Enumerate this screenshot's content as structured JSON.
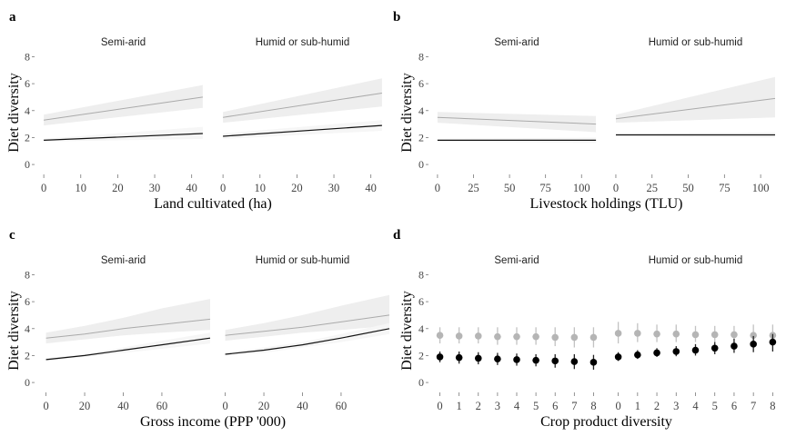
{
  "colors": {
    "upper_line": "#aaaaaa",
    "upper_band": "#eeeeee",
    "lower_line": "#111111",
    "lower_band": "#f6f6f6",
    "upper_point": "#b5b5b5",
    "upper_errorbar": "#c2c2c2",
    "lower_point": "#000000",
    "lower_errorbar": "#222222",
    "axis_text": "#444444"
  },
  "chart_data": [
    {
      "type": "line",
      "panel_letter": "a",
      "ylabel": "Diet diversity",
      "xlabel": "Land cultivated (ha)",
      "ylim": [
        0,
        8
      ],
      "yticks": [
        "0",
        "2",
        "4",
        "6",
        "8"
      ],
      "grid": false,
      "legend": "none",
      "facets": [
        {
          "strip": "Semi-arid",
          "xlim": [
            -2,
            45
          ],
          "xticks": [
            0,
            10,
            20,
            30,
            40
          ],
          "xtick_labels": [
            "0",
            "10",
            "20",
            "30",
            "40"
          ],
          "series": [
            {
              "x": [
                0,
                43
              ],
              "y": [
                3.3,
                5.0
              ],
              "lo": [
                2.9,
                4.2
              ],
              "hi": [
                3.7,
                5.9
              ]
            },
            {
              "x": [
                0,
                43
              ],
              "y": [
                1.8,
                2.3
              ],
              "lo": [
                1.7,
                1.9
              ],
              "hi": [
                1.9,
                2.8
              ]
            }
          ]
        },
        {
          "strip": "Humid or sub-humid",
          "xlim": [
            -2,
            45
          ],
          "xticks": [
            0,
            10,
            20,
            30,
            40
          ],
          "xtick_labels": [
            "0",
            "10",
            "20",
            "30",
            "40"
          ],
          "series": [
            {
              "x": [
                0,
                43
              ],
              "y": [
                3.5,
                5.3
              ],
              "lo": [
                3.1,
                4.3
              ],
              "hi": [
                3.9,
                6.4
              ]
            },
            {
              "x": [
                0,
                43
              ],
              "y": [
                2.1,
                2.9
              ],
              "lo": [
                1.9,
                2.5
              ],
              "hi": [
                2.3,
                3.3
              ]
            }
          ]
        }
      ]
    },
    {
      "type": "line",
      "panel_letter": "b",
      "ylabel": "Diet diversity",
      "xlabel": "Livestock holdings (TLU)",
      "ylim": [
        0,
        8
      ],
      "yticks": [
        "0",
        "2",
        "4",
        "6",
        "8"
      ],
      "grid": false,
      "legend": "none",
      "facets": [
        {
          "strip": "Semi-arid",
          "xlim": [
            -5,
            115
          ],
          "xticks": [
            0,
            25,
            50,
            75,
            100
          ],
          "xtick_labels": [
            "0",
            "25",
            "50",
            "75",
            "100"
          ],
          "series": [
            {
              "x": [
                0,
                110
              ],
              "y": [
                3.5,
                3.0
              ],
              "lo": [
                3.1,
                2.4
              ],
              "hi": [
                3.9,
                3.6
              ]
            },
            {
              "x": [
                0,
                110
              ],
              "y": [
                1.8,
                1.8
              ],
              "lo": [
                1.7,
                1.6
              ],
              "hi": [
                1.9,
                2.0
              ]
            }
          ]
        },
        {
          "strip": "Humid or sub-humid",
          "xlim": [
            -5,
            115
          ],
          "xticks": [
            0,
            25,
            50,
            75,
            100
          ],
          "xtick_labels": [
            "0",
            "25",
            "50",
            "75",
            "100"
          ],
          "series": [
            {
              "x": [
                0,
                110
              ],
              "y": [
                3.4,
                4.9
              ],
              "lo": [
                3.1,
                3.5
              ],
              "hi": [
                3.7,
                6.5
              ]
            },
            {
              "x": [
                0,
                110
              ],
              "y": [
                2.2,
                2.2
              ],
              "lo": [
                2.1,
                2.0
              ],
              "hi": [
                2.3,
                2.4
              ]
            }
          ]
        }
      ]
    },
    {
      "type": "line",
      "panel_letter": "c",
      "ylabel": "Diet diversity",
      "xlabel": "Gross income (PPP '000)",
      "ylim": [
        0,
        8
      ],
      "yticks": [
        "0",
        "2",
        "4",
        "6",
        "8"
      ],
      "grid": false,
      "legend": "none",
      "facets": [
        {
          "strip": "Semi-arid",
          "xlim": [
            -5,
            85
          ],
          "xticks": [
            0,
            20,
            40,
            60
          ],
          "xtick_labels": [
            "0",
            "20",
            "40",
            "60"
          ],
          "series": [
            {
              "x": [
                0,
                20,
                40,
                60,
                85
              ],
              "y": [
                3.3,
                3.6,
                4.0,
                4.3,
                4.7
              ],
              "lo": [
                2.9,
                3.2,
                3.5,
                3.7,
                3.9
              ],
              "hi": [
                3.7,
                4.2,
                4.8,
                5.5,
                6.2
              ]
            },
            {
              "x": [
                0,
                20,
                40,
                60,
                85
              ],
              "y": [
                1.7,
                2.0,
                2.4,
                2.8,
                3.3
              ],
              "lo": [
                1.6,
                1.9,
                2.2,
                2.5,
                2.9
              ],
              "hi": [
                1.8,
                2.1,
                2.6,
                3.1,
                3.7
              ]
            }
          ]
        },
        {
          "strip": "Humid or sub-humid",
          "xlim": [
            -5,
            85
          ],
          "xticks": [
            0,
            20,
            40,
            60
          ],
          "xtick_labels": [
            "0",
            "20",
            "40",
            "60"
          ],
          "series": [
            {
              "x": [
                0,
                20,
                40,
                60,
                85
              ],
              "y": [
                3.5,
                3.8,
                4.1,
                4.5,
                5.0
              ],
              "lo": [
                3.1,
                3.4,
                3.7,
                3.9,
                4.2
              ],
              "hi": [
                3.9,
                4.4,
                5.0,
                5.7,
                6.5
              ]
            },
            {
              "x": [
                0,
                20,
                40,
                60,
                85
              ],
              "y": [
                2.1,
                2.4,
                2.8,
                3.3,
                4.0
              ],
              "lo": [
                2.0,
                2.2,
                2.6,
                3.0,
                3.6
              ],
              "hi": [
                2.2,
                2.6,
                3.0,
                3.6,
                4.4
              ]
            }
          ]
        }
      ]
    },
    {
      "type": "scatter",
      "panel_letter": "d",
      "ylabel": "Diet diversity",
      "xlabel": "Crop product diversity",
      "ylim": [
        0,
        8
      ],
      "yticks": [
        "0",
        "2",
        "4",
        "6",
        "8"
      ],
      "grid": false,
      "legend": "none",
      "facets": [
        {
          "strip": "Semi-arid",
          "xlim": [
            -0.5,
            8.5
          ],
          "xticks": [
            0,
            1,
            2,
            3,
            4,
            5,
            6,
            7,
            8
          ],
          "xtick_labels": [
            "0",
            "1",
            "2",
            "3",
            "4",
            "5",
            "6",
            "7",
            "8"
          ],
          "series": [
            {
              "x": [
                0,
                1,
                2,
                3,
                4,
                5,
                6,
                7,
                8
              ],
              "y": [
                3.5,
                3.45,
                3.45,
                3.4,
                3.4,
                3.4,
                3.35,
                3.35,
                3.35
              ],
              "lo": [
                2.9,
                2.9,
                2.9,
                2.8,
                2.8,
                2.8,
                2.7,
                2.6,
                2.6
              ],
              "hi": [
                4.1,
                4.1,
                4.1,
                4.1,
                4.1,
                4.1,
                4.1,
                4.1,
                4.1
              ]
            },
            {
              "x": [
                0,
                1,
                2,
                3,
                4,
                5,
                6,
                7,
                8
              ],
              "y": [
                1.9,
                1.85,
                1.8,
                1.75,
                1.7,
                1.65,
                1.6,
                1.55,
                1.5
              ],
              "lo": [
                1.5,
                1.4,
                1.35,
                1.3,
                1.25,
                1.2,
                1.1,
                1.0,
                0.95
              ],
              "hi": [
                2.3,
                2.3,
                2.25,
                2.2,
                2.15,
                2.1,
                2.1,
                2.1,
                2.05
              ]
            }
          ]
        },
        {
          "strip": "Humid or sub-humid",
          "xlim": [
            -0.5,
            8.5
          ],
          "xticks": [
            0,
            1,
            2,
            3,
            4,
            5,
            6,
            7,
            8
          ],
          "xtick_labels": [
            "0",
            "1",
            "2",
            "3",
            "4",
            "5",
            "6",
            "7",
            "8"
          ],
          "series": [
            {
              "x": [
                0,
                1,
                2,
                3,
                4,
                5,
                6,
                7,
                8
              ],
              "y": [
                3.65,
                3.65,
                3.6,
                3.6,
                3.55,
                3.55,
                3.55,
                3.5,
                3.5
              ],
              "lo": [
                2.9,
                3.0,
                3.0,
                3.0,
                3.0,
                2.9,
                2.9,
                2.8,
                2.8
              ],
              "hi": [
                4.5,
                4.4,
                4.3,
                4.3,
                4.2,
                4.2,
                4.2,
                4.3,
                4.3
              ]
            },
            {
              "x": [
                0,
                1,
                2,
                3,
                4,
                5,
                6,
                7,
                8
              ],
              "y": [
                1.9,
                2.05,
                2.2,
                2.3,
                2.4,
                2.55,
                2.7,
                2.85,
                3.0
              ],
              "lo": [
                1.6,
                1.75,
                1.9,
                1.95,
                2.0,
                2.1,
                2.2,
                2.25,
                2.3
              ],
              "hi": [
                2.25,
                2.4,
                2.55,
                2.7,
                2.85,
                3.0,
                3.25,
                3.45,
                3.6
              ]
            }
          ]
        }
      ]
    }
  ]
}
